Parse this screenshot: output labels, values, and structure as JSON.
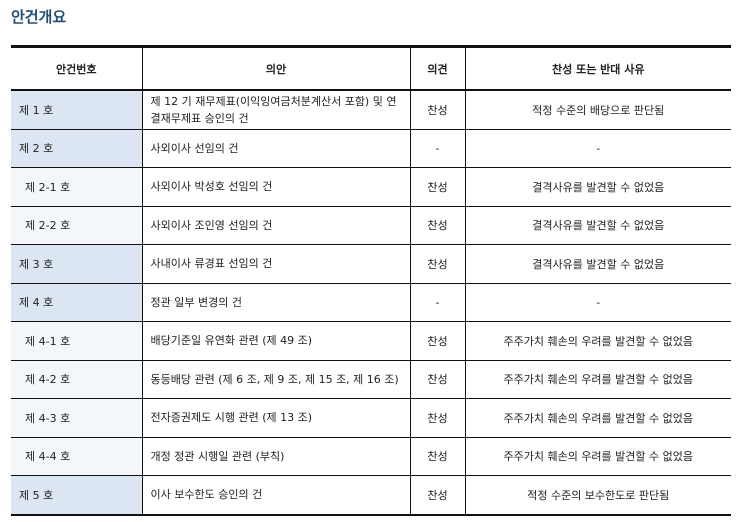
{
  "title": "안건개요",
  "headers": [
    "안건번호",
    "의안",
    "의견",
    "찬성 또는 반대 사유"
  ],
  "rows": [
    {
      "num": "제 1 호",
      "agenda": "제 12 기 재무제표(이익잉여금처분계산서 포함) 및 연결재무제표 승인의 건",
      "opinion": "찬성",
      "reason": "적정 수준의 배당으로 판단됨",
      "sub": false
    },
    {
      "num": "제 2 호",
      "agenda": "사외이사 선임의 건",
      "opinion": "-",
      "reason": "-",
      "sub": false
    },
    {
      "num": "제 2-1 호",
      "agenda": "사외이사 박성호 선임의 건",
      "opinion": "찬성",
      "reason": "결격사유를 발견할 수 없었음",
      "sub": true
    },
    {
      "num": "제 2-2 호",
      "agenda": "사외이사 조인영 선임의 건",
      "opinion": "찬성",
      "reason": "결격사유를 발견할 수 없었음",
      "sub": true
    },
    {
      "num": "제 3 호",
      "agenda": "사내이사 류경표 선임의 건",
      "opinion": "찬성",
      "reason": "결격사유를 발견할 수 없었음",
      "sub": false
    },
    {
      "num": "제 4 호",
      "agenda": "정관 일부 변경의 건",
      "opinion": "-",
      "reason": "-",
      "sub": false
    },
    {
      "num": "제 4-1 호",
      "agenda": "배당기준일 유연화 관련 (제 49 조)",
      "opinion": "찬성",
      "reason": "주주가치 훼손의 우려를 발견할 수 없었음",
      "sub": true
    },
    {
      "num": "제 4-2 호",
      "agenda": "동등배당 관련 (제 6 조, 제 9 조, 제 15 조, 제 16 조)",
      "opinion": "찬성",
      "reason": "주주가치 훼손의 우려를 발견할 수 없었음",
      "sub": true
    },
    {
      "num": "제 4-3 호",
      "agenda": "전자증권제도 시행 관련 (제 13 조)",
      "opinion": "찬성",
      "reason": "주주가치 훼손의 우려를 발견할 수 없었음",
      "sub": true
    },
    {
      "num": "제 4-4 호",
      "agenda": "개정 정관 시행일 관련 (부칙)",
      "opinion": "찬성",
      "reason": "주주가치 훼손의 우려를 발견할 수 없었음",
      "sub": true
    },
    {
      "num": "제 5 호",
      "agenda": "이사 보수한도 승인의 건",
      "opinion": "찬성",
      "reason": "적정 수준의 보수한도로 판단됨",
      "sub": false
    }
  ]
}
